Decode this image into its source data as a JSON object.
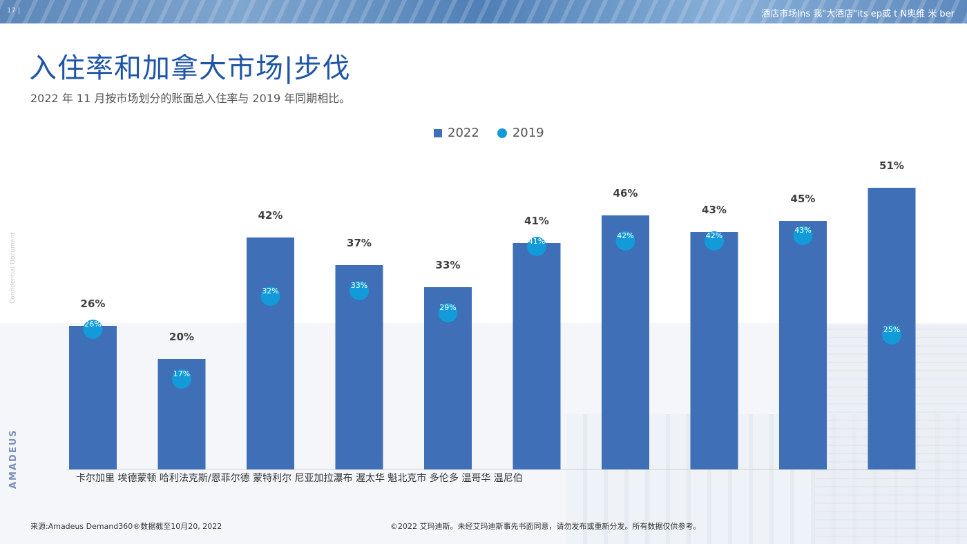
{
  "header": {
    "page_number": "17 |",
    "title_text": "酒店市场Ins 我\"大酒店\"its   ep或 t     N奥维  米  ber"
  },
  "title": "入住率和加拿大市场|步伐",
  "subtitle": "2022 年 11 月按市场划分的账面总入住率与 2019 年同期相比。",
  "side_note": "Confidential Document",
  "brand": "AMADEUS",
  "legend": {
    "series_a": "2022",
    "series_b": "2019"
  },
  "x_axis_text": "卡尔加里 埃德蒙顿 哈利法克斯/恩菲尔德 蒙特利尔 尼亚加拉瀑布 渥太华 魁北克市 多伦多 温哥华 温尼伯",
  "footer": {
    "source": "来源:Amadeus Demand360®数据截至10月20, 2022",
    "copyright": "©2022 艾玛迪斯。未经艾玛迪斯事先书面同意，请勿发布或重新分发。所有数据仅供参考。"
  },
  "colors": {
    "bar": "#3f6fb7",
    "dot": "#129bd8",
    "title": "#1f55a6"
  },
  "chart_data": {
    "type": "bar",
    "categories": [
      "卡尔加里",
      "埃德蒙顿",
      "哈利法克斯/恩菲尔德",
      "蒙特利尔",
      "尼亚加拉瀑布",
      "渥太华",
      "魁北克市",
      "多伦多",
      "温哥华",
      "温尼伯"
    ],
    "series": [
      {
        "name": "2022",
        "values": [
          26,
          20,
          42,
          37,
          33,
          41,
          46,
          43,
          45,
          51
        ],
        "labels": [
          "26%",
          "20%",
          "42%",
          "37%",
          "33%",
          "41%",
          "46%",
          "43%",
          "45%",
          "51%"
        ]
      },
      {
        "name": "2019",
        "values": [
          26,
          17,
          32,
          33,
          29,
          41,
          42,
          42,
          43,
          25
        ],
        "labels": [
          "26%",
          "17%",
          "32%",
          "33%",
          "29%",
          "41%",
          "42%",
          "42%",
          "43%",
          "25%"
        ]
      }
    ],
    "ylim": [
      0,
      60
    ],
    "grid": false,
    "legend_position": "top-center"
  }
}
